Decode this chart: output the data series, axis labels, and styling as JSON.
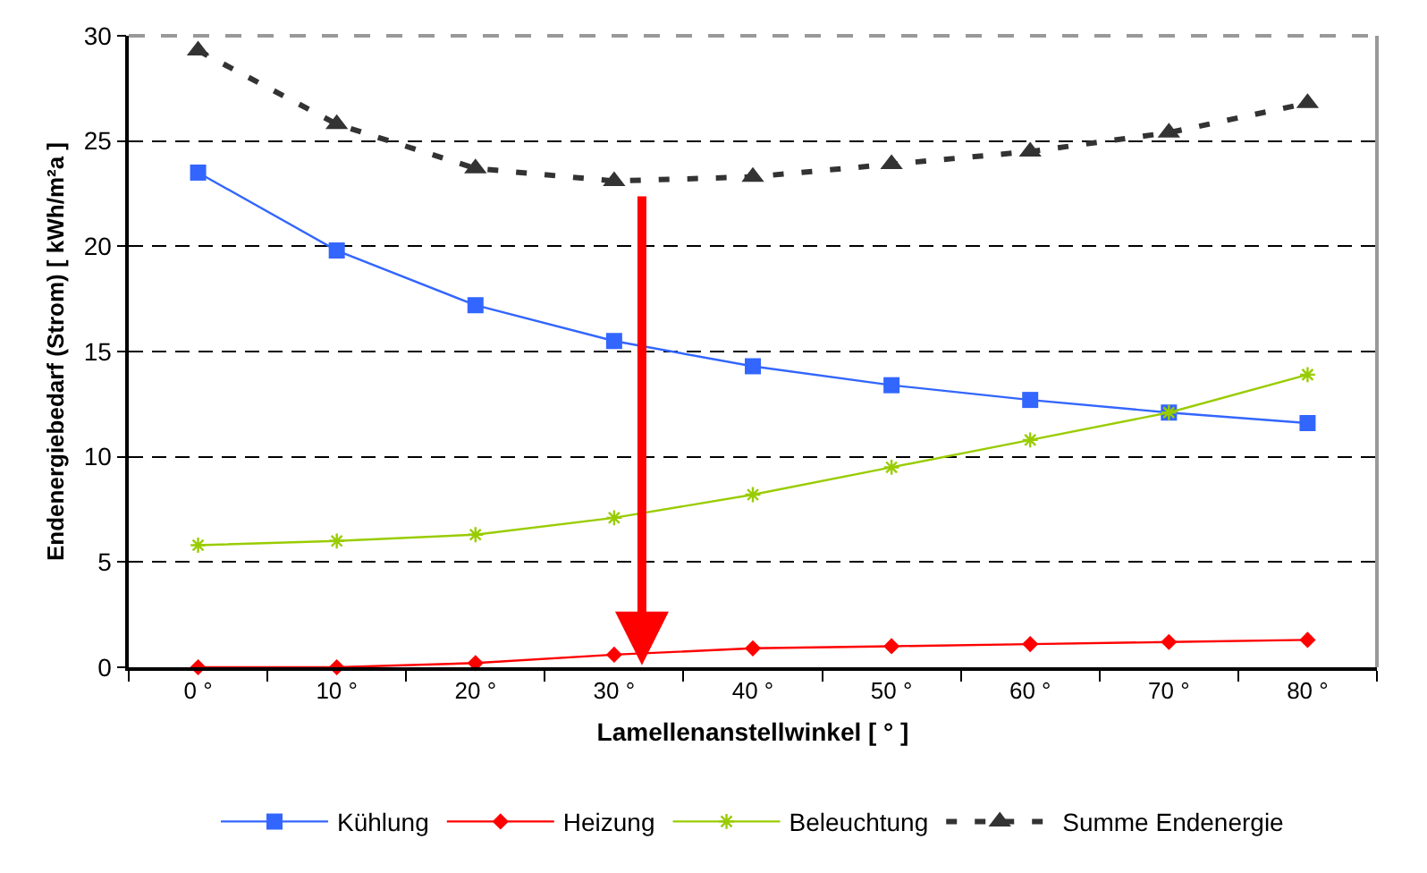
{
  "chart_data": {
    "type": "line",
    "xlabel": "Lamellenanstellwinkel [ ° ]",
    "ylabel": "Endenergiebedarf (Strom) [ kWh/m²a ]",
    "categories": [
      "0 °",
      "10 °",
      "20 °",
      "30 °",
      "40 °",
      "50 °",
      "60 °",
      "70 °",
      "80 °"
    ],
    "series": [
      {
        "name": "Kühlung",
        "color": "#3366ff",
        "marker": "square",
        "line_style": "solid",
        "values": [
          23.5,
          19.8,
          17.2,
          15.5,
          14.3,
          13.4,
          12.7,
          12.1,
          11.6
        ]
      },
      {
        "name": "Heizung",
        "color": "#ff0000",
        "marker": "diamond",
        "line_style": "solid",
        "values": [
          0,
          0,
          0.2,
          0.6,
          0.9,
          1.0,
          1.1,
          1.2,
          1.3
        ]
      },
      {
        "name": "Beleuchtung",
        "color": "#99cc00",
        "marker": "cross",
        "line_style": "solid",
        "values": [
          5.8,
          6.0,
          6.3,
          7.1,
          8.2,
          9.5,
          10.8,
          12.1,
          13.9
        ]
      },
      {
        "name": "Summe Endenergie",
        "color": "#333333",
        "marker": "triangle",
        "line_style": "dashed",
        "values": [
          29.3,
          25.8,
          23.7,
          23.1,
          23.3,
          23.9,
          24.5,
          25.4,
          26.8
        ]
      }
    ],
    "ylim": [
      0,
      30
    ],
    "yticks": [
      0,
      5,
      10,
      15,
      20,
      25,
      30
    ],
    "grid": "y",
    "legend": "bottom"
  }
}
